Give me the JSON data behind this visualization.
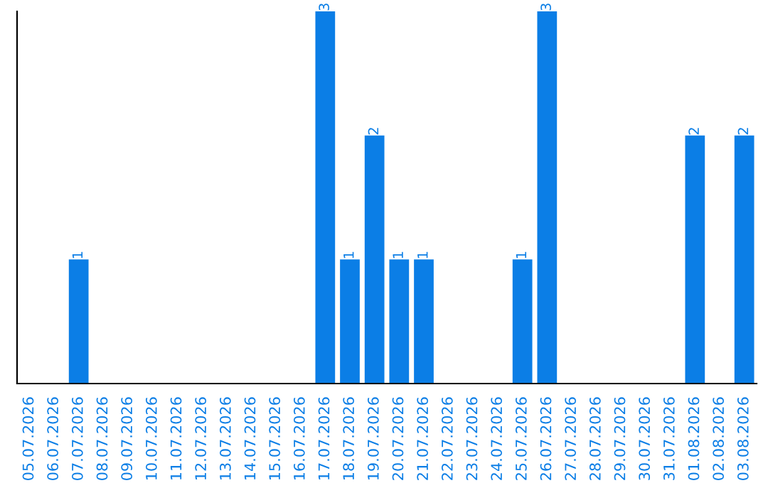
{
  "chart_data": {
    "type": "bar",
    "categories": [
      "05.07.2026",
      "06.07.2026",
      "07.07.2026",
      "08.07.2026",
      "09.07.2026",
      "10.07.2026",
      "11.07.2026",
      "12.07.2026",
      "13.07.2026",
      "14.07.2026",
      "15.07.2026",
      "16.07.2026",
      "17.07.2026",
      "18.07.2026",
      "19.07.2026",
      "20.07.2026",
      "21.07.2026",
      "22.07.2026",
      "23.07.2026",
      "24.07.2026",
      "25.07.2026",
      "26.07.2026",
      "27.07.2026",
      "28.07.2026",
      "29.07.2026",
      "30.07.2026",
      "31.07.2026",
      "01.08.2026",
      "02.08.2026",
      "03.08.2026"
    ],
    "values": [
      0,
      0,
      1,
      0,
      0,
      0,
      0,
      0,
      0,
      0,
      0,
      0,
      3,
      1,
      2,
      1,
      1,
      0,
      0,
      0,
      1,
      3,
      0,
      0,
      0,
      0,
      0,
      2,
      0,
      2
    ],
    "value_labels": [
      null,
      null,
      "1",
      null,
      null,
      null,
      null,
      null,
      null,
      null,
      null,
      null,
      "3",
      "1",
      "2",
      "1",
      "1",
      null,
      null,
      null,
      "1",
      "3",
      null,
      null,
      null,
      null,
      null,
      "2",
      null,
      "2"
    ],
    "color": "#0b7ee6",
    "tick_labels": "x",
    "grid": false,
    "legend": false
  }
}
